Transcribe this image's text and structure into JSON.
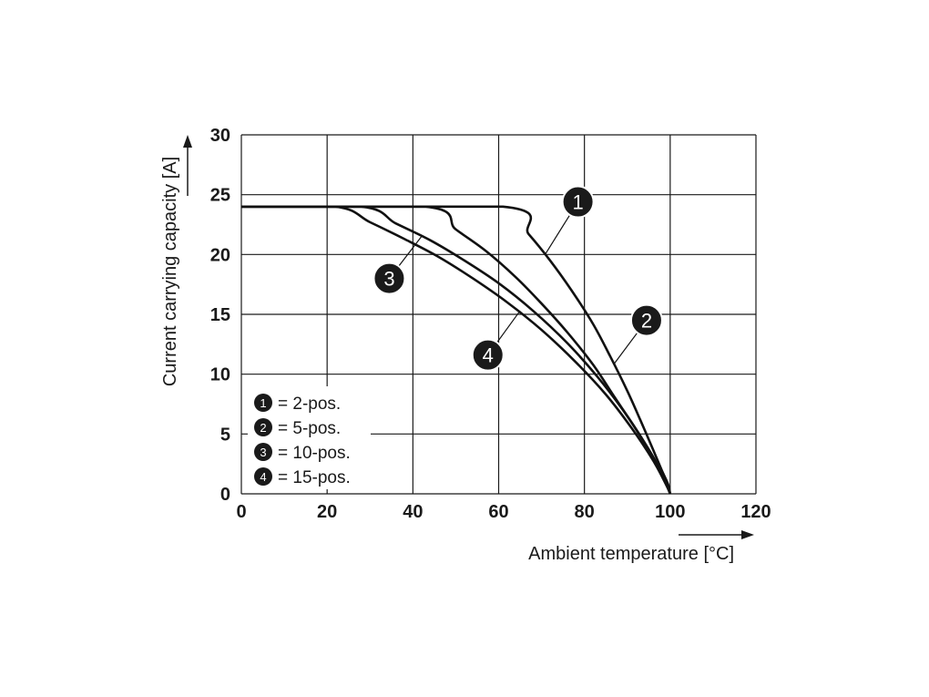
{
  "chart_data": {
    "type": "line",
    "xlabel": "Ambient temperature [°C]",
    "ylabel": "Current carrying capacity [A]",
    "xlim": [
      0,
      120
    ],
    "ylim": [
      0,
      30
    ],
    "xticks": [
      "0",
      "20",
      "40",
      "60",
      "80",
      "100",
      "120"
    ],
    "yticks": [
      "0",
      "5",
      "10",
      "15",
      "20",
      "25",
      "30"
    ],
    "grid": true,
    "legend_position": "bottom-left",
    "series": [
      {
        "name": "2-pos.",
        "marker": "1",
        "x": [
          0,
          61,
          67,
          72,
          77,
          82,
          86,
          90,
          93,
          96,
          98,
          99.5,
          100
        ],
        "y": [
          24,
          24,
          21.7,
          19.5,
          17.0,
          14.2,
          11.5,
          8.6,
          6.2,
          3.7,
          2.0,
          0.8,
          0
        ]
      },
      {
        "name": "5-pos.",
        "marker": "2",
        "x": [
          0,
          43,
          50,
          57,
          64,
          70,
          76,
          82,
          87,
          92,
          96,
          99,
          100
        ],
        "y": [
          24,
          24,
          22.1,
          20.3,
          18.1,
          15.9,
          13.5,
          10.8,
          8.1,
          5.4,
          3.0,
          1.0,
          0
        ]
      },
      {
        "name": "10-pos.",
        "marker": "3",
        "x": [
          0,
          28,
          36,
          44,
          52,
          60,
          68,
          76,
          83,
          89,
          94,
          98,
          100
        ],
        "y": [
          24,
          24,
          22.6,
          21.2,
          19.5,
          17.6,
          15.3,
          12.6,
          9.8,
          7.0,
          4.3,
          1.8,
          0
        ]
      },
      {
        "name": "15-pos.",
        "marker": "4",
        "x": [
          0,
          22,
          30,
          38,
          46,
          54,
          62,
          70,
          78,
          85,
          91,
          96,
          99,
          100
        ],
        "y": [
          24,
          24,
          22.7,
          21.3,
          19.8,
          18.0,
          16.0,
          13.7,
          11.0,
          8.3,
          5.5,
          2.8,
          0.8,
          0
        ]
      }
    ],
    "callouts": [
      {
        "marker": "1",
        "anchor": [
          71,
          20.1
        ],
        "label_at": [
          78.5,
          24.4
        ]
      },
      {
        "marker": "2",
        "anchor": [
          87,
          10.9
        ],
        "label_at": [
          94.5,
          14.5
        ]
      },
      {
        "marker": "3",
        "anchor": [
          42,
          21.5
        ],
        "label_at": [
          34.5,
          18.0
        ]
      },
      {
        "marker": "4",
        "anchor": [
          65,
          15.3
        ],
        "label_at": [
          57.5,
          11.6
        ]
      }
    ],
    "legend": [
      {
        "marker": "1",
        "label": "= 2-pos."
      },
      {
        "marker": "2",
        "label": "= 5-pos."
      },
      {
        "marker": "3",
        "label": "= 10-pos."
      },
      {
        "marker": "4",
        "label": "= 15-pos."
      }
    ],
    "colors": {
      "curve": "#111111",
      "grid": "#1a1a1a",
      "marker_fill": "#1a1a1a",
      "marker_text": "#ffffff",
      "text": "#1a1a1a"
    }
  }
}
